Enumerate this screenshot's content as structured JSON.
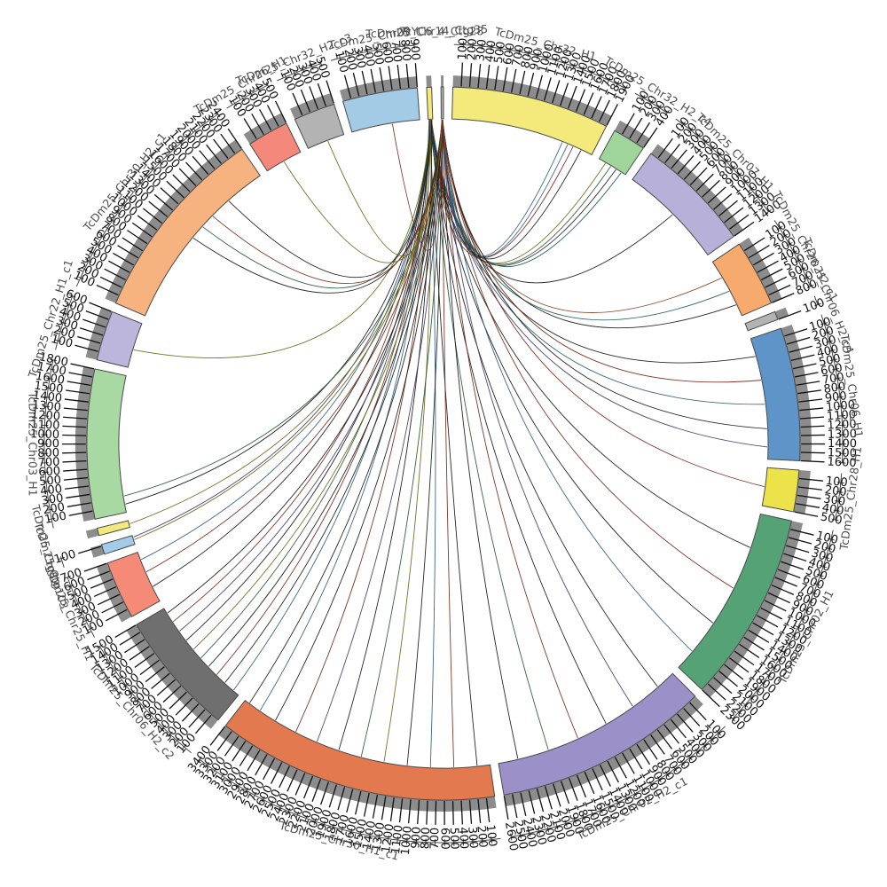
{
  "figure": {
    "background": "#ffffff",
    "description": "Circos-style synteny plot: chromosome ideograms of assembly TcDm25 arranged in a circle with tick rulers, and alignment links fanning out from small contig segments at the top center to positions on the chromosomes."
  },
  "chart_data": {
    "type": "circos",
    "title": "",
    "units_per_tick": 100,
    "tick_label_every": 100,
    "gap_degrees": 1.5,
    "start_angle_deg": 1.5,
    "radii": {
      "band_inner": 366,
      "band_outer": 402,
      "grayband_outer": 415,
      "tick_outer": 430,
      "tick_label": 433,
      "axis": 450,
      "axis_tick_inner": 446,
      "axis_tick_outer": 454,
      "name_label": 464,
      "link_anchor": 365
    },
    "styles": {
      "grayband_color": "#8c8c8c",
      "band_stroke": "#4a4a4a",
      "tick_color": "#111111",
      "axis_color": "#333333",
      "tick_font_px": 13,
      "name_font_px": 12.5,
      "link_width": 0.9
    },
    "segments": [
      {
        "name": "TcDm25_Chr32_H1",
        "color": "#f3ea7b",
        "length": 1900
      },
      {
        "name": "TcDm25_Chr32_H2_c4",
        "color": "#9fd49b",
        "length": 400
      },
      {
        "name": "TcDm25_Chr07_H1",
        "color": "#b7b1d9",
        "length": 1400
      },
      {
        "name": "TcDm25_Chr26_H2_c1",
        "color": "#f6aa6e",
        "length": 800
      },
      {
        "name": "TcDm25_Chr06_H2_c4",
        "color": "#b3b3b3",
        "length": 100
      },
      {
        "name": "TcDm25_Chr06_H1",
        "color": "#5e94c8",
        "length": 1600
      },
      {
        "name": "TcDm25_Chr28_H1",
        "color": "#ece24a",
        "length": 500
      },
      {
        "name": "TcDm25_Chr02_H1",
        "color": "#55a276",
        "length": 2300
      },
      {
        "name": "TcDm25_Chr02_H2_c1",
        "color": "#9b90c8",
        "length": 2600
      },
      {
        "name": "TcDm25_Chr30_H1_c1",
        "color": "#e2794f",
        "length": 3400
      },
      {
        "name": "TcDm25_Chr06_H2_c2",
        "color": "#6f6f6f",
        "length": 1500
      },
      {
        "name": "TcDm25_Chr25_H1",
        "color": "#f58b77",
        "length": 700
      },
      {
        "name": "TcDm25_Ctg103",
        "color": "#a3cce8",
        "length": 120
      },
      {
        "name": "TcDm25_Ctg82",
        "color": "#f3ea7b",
        "length": 90
      },
      {
        "name": "TcDm25_Chr03_H1",
        "color": "#a8d9a2",
        "length": 1800
      },
      {
        "name": "TcDm25_Chr22_H1_c1",
        "color": "#bcb6dc",
        "length": 600
      },
      {
        "name": "TcDm25_Chr30_H2_c1",
        "color": "#f6b27f",
        "length": 2400
      },
      {
        "name": "TcDm25_Chr26_H1",
        "color": "#f4897b",
        "length": 500
      },
      {
        "name": "TcDm25_Chr32_H2_c3",
        "color": "#b3b3b3",
        "length": 500
      },
      {
        "name": "TcDm25_Chr09",
        "color": "#a3cbe5",
        "length": 900
      },
      {
        "name": "TcDm25_Chr14_Ctg35",
        "color": "#f3ea7b",
        "length": 60
      },
      {
        "name": "TcYC6_4_Ctg28",
        "color": "#b3b3b3",
        "length": 30
      }
    ],
    "links_format": "[source_segment_index, source_fraction, target_segment_index, target_fraction, stroke_color]",
    "links": [
      [
        21,
        0.5,
        0,
        0.78,
        "#35607f"
      ],
      [
        21,
        0.5,
        0,
        0.82,
        "#35607f"
      ],
      [
        20,
        0.5,
        0,
        0.86,
        "#7a2e1d"
      ],
      [
        21,
        0.5,
        0,
        0.92,
        "#1c1c1c"
      ],
      [
        20,
        0.4,
        1,
        0.25,
        "#6e6a1e"
      ],
      [
        21,
        0.5,
        1,
        0.45,
        "#2d5a3a"
      ],
      [
        20,
        0.6,
        1,
        0.65,
        "#1c1c1c"
      ],
      [
        21,
        0.5,
        1,
        0.85,
        "#1f6060"
      ],
      [
        20,
        0.5,
        2,
        0.5,
        "#1c1c1c"
      ],
      [
        21,
        0.4,
        3,
        0.3,
        "#8a4a2a"
      ],
      [
        20,
        0.5,
        3,
        0.55,
        "#1f6060"
      ],
      [
        21,
        0.6,
        3,
        0.8,
        "#1c1c1c"
      ],
      [
        20,
        0.3,
        5,
        0.15,
        "#1c1c1c"
      ],
      [
        21,
        0.5,
        5,
        0.35,
        "#7a2e1d"
      ],
      [
        20,
        0.5,
        5,
        0.55,
        "#35607f"
      ],
      [
        21,
        0.5,
        5,
        0.75,
        "#1c1c1c"
      ],
      [
        20,
        0.7,
        5,
        0.9,
        "#45406e"
      ],
      [
        21,
        0.5,
        6,
        0.5,
        "#7a2e1d"
      ],
      [
        20,
        0.4,
        7,
        0.2,
        "#1c1c1c"
      ],
      [
        21,
        0.5,
        7,
        0.45,
        "#7a2e1d"
      ],
      [
        20,
        0.6,
        7,
        0.68,
        "#1c1c1c"
      ],
      [
        21,
        0.5,
        7,
        0.88,
        "#35607f"
      ],
      [
        20,
        0.3,
        8,
        0.1,
        "#1c1c1c"
      ],
      [
        21,
        0.4,
        8,
        0.26,
        "#45406e"
      ],
      [
        20,
        0.5,
        8,
        0.42,
        "#1c1c1c"
      ],
      [
        21,
        0.6,
        8,
        0.58,
        "#7a2e1d"
      ],
      [
        20,
        0.7,
        8,
        0.74,
        "#2d5a3a"
      ],
      [
        21,
        0.5,
        8,
        0.9,
        "#1c1c1c"
      ],
      [
        20,
        0.2,
        9,
        0.05,
        "#1c1c1c"
      ],
      [
        21,
        0.3,
        9,
        0.14,
        "#7a2e1d"
      ],
      [
        20,
        0.4,
        9,
        0.23,
        "#35607f"
      ],
      [
        21,
        0.5,
        9,
        0.32,
        "#1c1c1c"
      ],
      [
        20,
        0.6,
        9,
        0.41,
        "#6e6a1e"
      ],
      [
        21,
        0.7,
        9,
        0.5,
        "#2d5a3a"
      ],
      [
        20,
        0.8,
        9,
        0.59,
        "#1c1c1c"
      ],
      [
        21,
        0.4,
        9,
        0.68,
        "#45406e"
      ],
      [
        20,
        0.5,
        9,
        0.77,
        "#7a2e1d"
      ],
      [
        21,
        0.6,
        9,
        0.86,
        "#1c1c1c"
      ],
      [
        20,
        0.3,
        9,
        0.93,
        "#35607f"
      ],
      [
        21,
        0.5,
        9,
        0.98,
        "#1c1c1c"
      ],
      [
        20,
        0.2,
        10,
        0.06,
        "#35607f"
      ],
      [
        21,
        0.3,
        10,
        0.16,
        "#1c1c1c"
      ],
      [
        20,
        0.4,
        10,
        0.26,
        "#7a2e1d"
      ],
      [
        21,
        0.5,
        10,
        0.36,
        "#1c1c1c"
      ],
      [
        20,
        0.6,
        10,
        0.46,
        "#2d5a3a"
      ],
      [
        21,
        0.7,
        10,
        0.56,
        "#6e6a1e"
      ],
      [
        20,
        0.8,
        10,
        0.66,
        "#1c1c1c"
      ],
      [
        21,
        0.4,
        10,
        0.76,
        "#45406e"
      ],
      [
        20,
        0.5,
        10,
        0.86,
        "#7a2e1d"
      ],
      [
        21,
        0.6,
        10,
        0.95,
        "#1c1c1c"
      ],
      [
        20,
        0.5,
        11,
        0.3,
        "#1c1c1c"
      ],
      [
        21,
        0.5,
        11,
        0.6,
        "#7a2e1d"
      ],
      [
        20,
        0.5,
        11,
        0.85,
        "#35607f"
      ],
      [
        21,
        0.5,
        12,
        0.5,
        "#6e6a1e"
      ],
      [
        20,
        0.5,
        12,
        0.8,
        "#45406e"
      ],
      [
        21,
        0.5,
        13,
        0.5,
        "#6e6a1e"
      ],
      [
        20,
        0.5,
        14,
        0.06,
        "#1c1c1c"
      ],
      [
        21,
        0.5,
        14,
        0.12,
        "#2d5a3a"
      ],
      [
        20,
        0.5,
        15,
        0.4,
        "#6e6a1e"
      ],
      [
        21,
        0.5,
        16,
        0.5,
        "#1c1c1c"
      ],
      [
        20,
        0.5,
        16,
        0.58,
        "#2d5a3a"
      ],
      [
        21,
        0.5,
        16,
        0.66,
        "#7a2e1d"
      ],
      [
        20,
        0.5,
        16,
        0.78,
        "#1c1c1c"
      ],
      [
        21,
        0.5,
        17,
        0.5,
        "#6e6a1e"
      ],
      [
        20,
        0.5,
        18,
        0.55,
        "#6e6a1e"
      ],
      [
        21,
        0.5,
        19,
        0.6,
        "#7a2e1d"
      ]
    ]
  }
}
